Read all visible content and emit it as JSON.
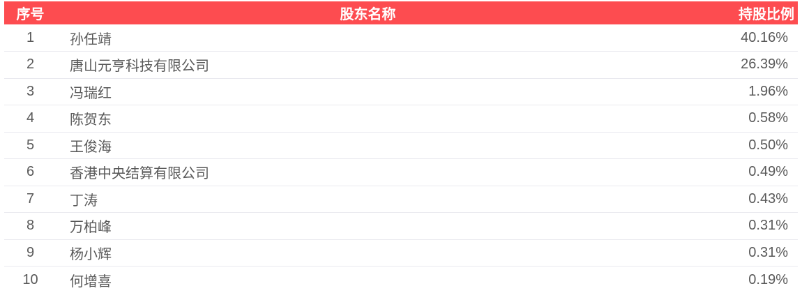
{
  "colors": {
    "header_bg": "#fd4c50",
    "header_text": "#ffffff",
    "body_text": "#595959",
    "divider": "#e9e9ef"
  },
  "table": {
    "columns": [
      {
        "key": "index",
        "label": "序号"
      },
      {
        "key": "name",
        "label": "股东名称"
      },
      {
        "key": "ratio",
        "label": "持股比例"
      }
    ],
    "rows": [
      {
        "index": "1",
        "name": "孙任靖",
        "ratio": "40.16%"
      },
      {
        "index": "2",
        "name": "唐山元亨科技有限公司",
        "ratio": "26.39%"
      },
      {
        "index": "3",
        "name": "冯瑞红",
        "ratio": "1.96%"
      },
      {
        "index": "4",
        "name": "陈贺东",
        "ratio": "0.58%"
      },
      {
        "index": "5",
        "name": "王俊海",
        "ratio": "0.50%"
      },
      {
        "index": "6",
        "name": "香港中央结算有限公司",
        "ratio": "0.49%"
      },
      {
        "index": "7",
        "name": "丁涛",
        "ratio": "0.43%"
      },
      {
        "index": "8",
        "name": "万柏峰",
        "ratio": "0.31%"
      },
      {
        "index": "9",
        "name": "杨小辉",
        "ratio": "0.31%"
      },
      {
        "index": "10",
        "name": "何增喜",
        "ratio": "0.19%"
      }
    ]
  }
}
